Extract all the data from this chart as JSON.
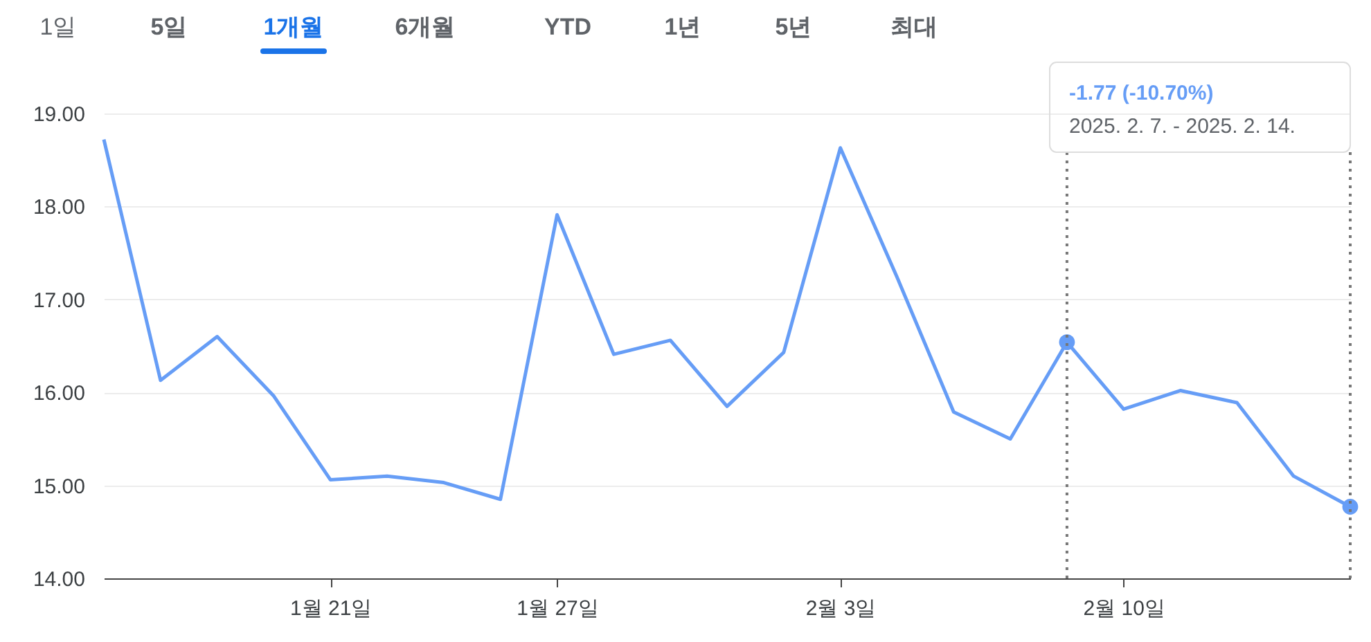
{
  "chart_data": {
    "type": "line",
    "categories": [
      null,
      null,
      null,
      null,
      "1월 21일",
      null,
      null,
      null,
      "1월 27일",
      null,
      null,
      null,
      null,
      "2월 3일",
      null,
      null,
      null,
      null,
      "2월 10일",
      null,
      null,
      null,
      null
    ],
    "series": [
      {
        "color": "#669df6",
        "values": [
          18.72,
          16.13,
          16.6,
          15.96,
          15.06,
          15.1,
          15.03,
          14.85,
          17.91,
          16.41,
          16.56,
          15.85,
          16.43,
          18.63,
          17.24,
          15.79,
          15.5,
          16.54,
          15.82,
          16.02,
          15.89,
          15.1,
          14.77
        ]
      },
      {
        "type": "scatter",
        "marker": "circle",
        "color": "#669df6",
        "values": [
          null,
          null,
          null,
          null,
          null,
          null,
          null,
          null,
          null,
          null,
          null,
          null,
          null,
          null,
          null,
          null,
          null,
          16.54,
          null,
          null,
          null,
          null,
          14.77
        ]
      }
    ],
    "ylim": [
      14,
      19
    ],
    "yticks": [
      {
        "value": 14,
        "label": "14.00"
      },
      {
        "value": 15,
        "label": "15.00"
      },
      {
        "value": 16,
        "label": "16.00"
      },
      {
        "value": 17,
        "label": "17.00"
      },
      {
        "value": 18,
        "label": "18.00"
      },
      {
        "value": 19,
        "label": "19.00"
      }
    ],
    "grid": "y",
    "marker": "none",
    "line_style": "solid",
    "annotations": [
      "1일",
      "5일",
      "1개월",
      "6개월",
      "YTD",
      "1년",
      "5년",
      "최대",
      "-1.77 (-10.70%)",
      "2025. 2. 7. - 2025. 2. 14."
    ]
  }
}
